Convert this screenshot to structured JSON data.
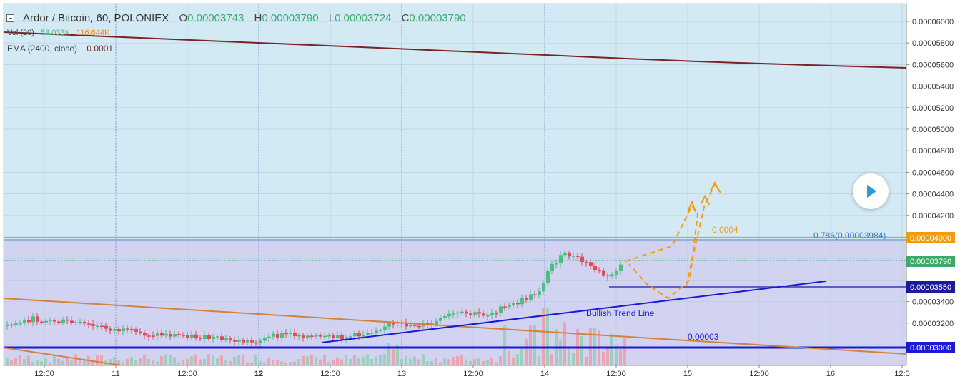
{
  "header": {
    "collapse_label": "",
    "symbol": "Ardor / Bitcoin, 60, POLONIEX",
    "open_label": "O",
    "open_value": "0.00003743",
    "high_label": "H",
    "high_value": "0.00003790",
    "low_label": "L",
    "low_value": "0.00003724",
    "close_label": "C",
    "close_value": "0.00003790"
  },
  "indicators": {
    "vol_name": "Vol (20)",
    "vol_value_1": "53.033K",
    "vol_value_2": "116.644K",
    "ema_name": "EMA (2400, close)",
    "ema_value": "0.0001"
  },
  "price_axis": {
    "ticks": [
      "0.00006000",
      "0.00005800",
      "0.00005600",
      "0.00005400",
      "0.00005200",
      "0.00005000",
      "0.00004800",
      "0.00004600",
      "0.00004400",
      "0.00004200",
      "0.00003400",
      "0.00003200"
    ],
    "label_4000": "0.00004000",
    "label_3790": "0.00003790",
    "label_3550": "0.00003550",
    "label_3000": "0.00003000"
  },
  "time_axis": {
    "labels": [
      "12:00",
      "11",
      "12:00",
      "12",
      "12:00",
      "13",
      "12:00",
      "14",
      "12:00",
      "15",
      "12:00",
      "16",
      "12:0"
    ]
  },
  "annotations": {
    "fib_label": "0.786(0.00003984)",
    "target_label": "0.0004",
    "trend_label": "Bullish Trend Line",
    "support_label": "0.00003"
  },
  "colors": {
    "upper_bg": "#d3e9f4",
    "lower_bg": "#d2d3f0",
    "bull": "#4dbd82",
    "bear": "#e2495b",
    "ema": "#7b2225",
    "orange": "#f39c12",
    "blue": "#1a1ad6",
    "brown": "#d4813f"
  }
}
